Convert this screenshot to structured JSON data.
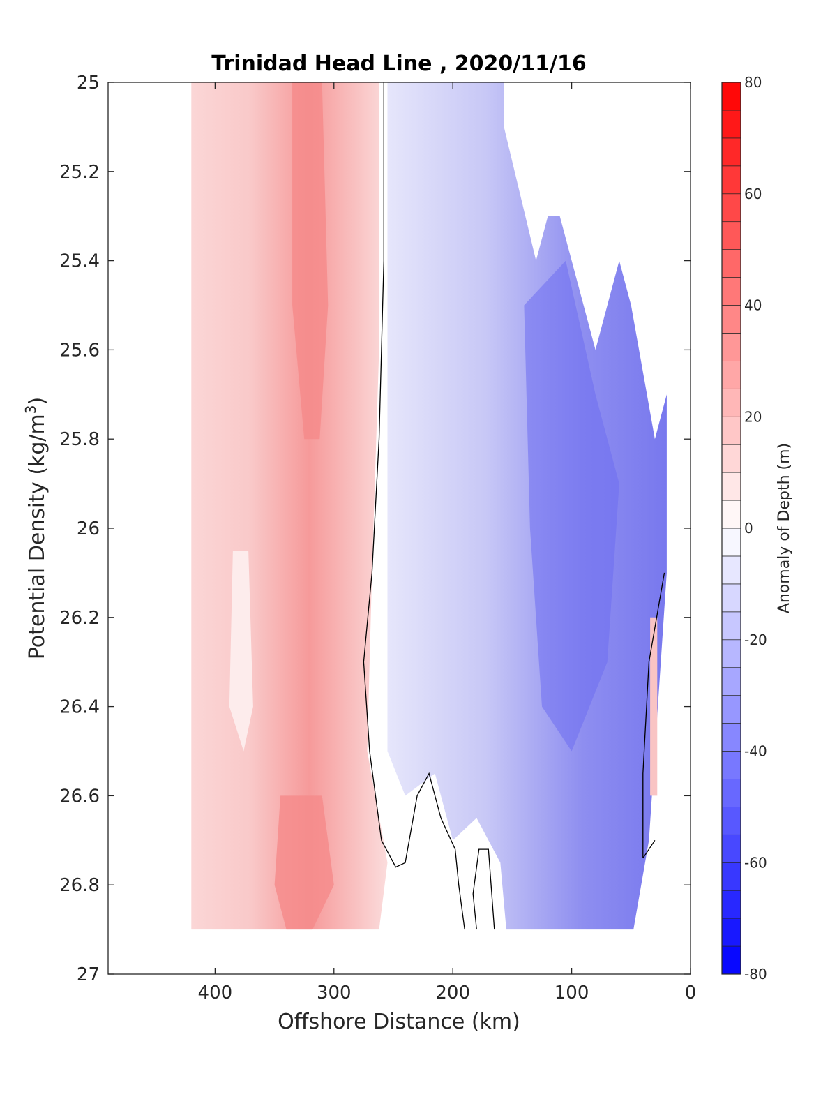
{
  "chart_data": {
    "type": "heatmap",
    "subtype": "filled-contour",
    "title": "Trinidad Head Line , 2020/11/16",
    "xlabel": "Offshore Distance (km)",
    "ylabel_main": "Potential Density (kg/m",
    "ylabel_sup": "3",
    "ylabel_close": ")",
    "xlim": [
      490,
      0
    ],
    "x_reversed": true,
    "ylim": [
      25,
      27
    ],
    "y_reversed": true,
    "x_ticks": [
      "400",
      "300",
      "200",
      "100",
      "0"
    ],
    "x_tick_values": [
      400,
      300,
      200,
      100,
      0
    ],
    "y_ticks": [
      "25",
      "25.2",
      "25.4",
      "25.6",
      "25.8",
      "26",
      "26.2",
      "26.4",
      "26.6",
      "26.8",
      "27"
    ],
    "y_tick_values": [
      25,
      25.2,
      25.4,
      25.6,
      25.8,
      26,
      26.2,
      26.4,
      26.6,
      26.8,
      27
    ],
    "colorbar": {
      "label": "Anomaly of Depth (m)",
      "range": [
        -80,
        80
      ],
      "step": 5,
      "ticks": [
        "80",
        "60",
        "40",
        "20",
        "0",
        "-20",
        "-40",
        "-60",
        "-80"
      ],
      "tick_values": [
        80,
        60,
        40,
        20,
        0,
        -20,
        -40,
        -60,
        -80
      ],
      "colormap": "blue-white-red",
      "low_color": "#0000ff",
      "mid_color": "#ffffff",
      "high_color": "#ff0000"
    },
    "zero_contour_color": "#000000",
    "data_extent": {
      "x_range_km": [
        20,
        420
      ],
      "y_range": [
        25,
        26.9
      ]
    },
    "regions": [
      {
        "name": "positive anomaly (offshore)",
        "x_km": [
          275,
          420
        ],
        "y": [
          25,
          26.9
        ],
        "peak": 30
      },
      {
        "name": "negative anomaly (nearshore)",
        "x_km": [
          20,
          255
        ],
        "y": [
          25,
          26.9
        ],
        "min": -55
      },
      {
        "name": "positive anomaly (near coast)",
        "x_km": [
          28,
          35
        ],
        "y": [
          26.2,
          26.6
        ],
        "peak": 10
      }
    ]
  }
}
